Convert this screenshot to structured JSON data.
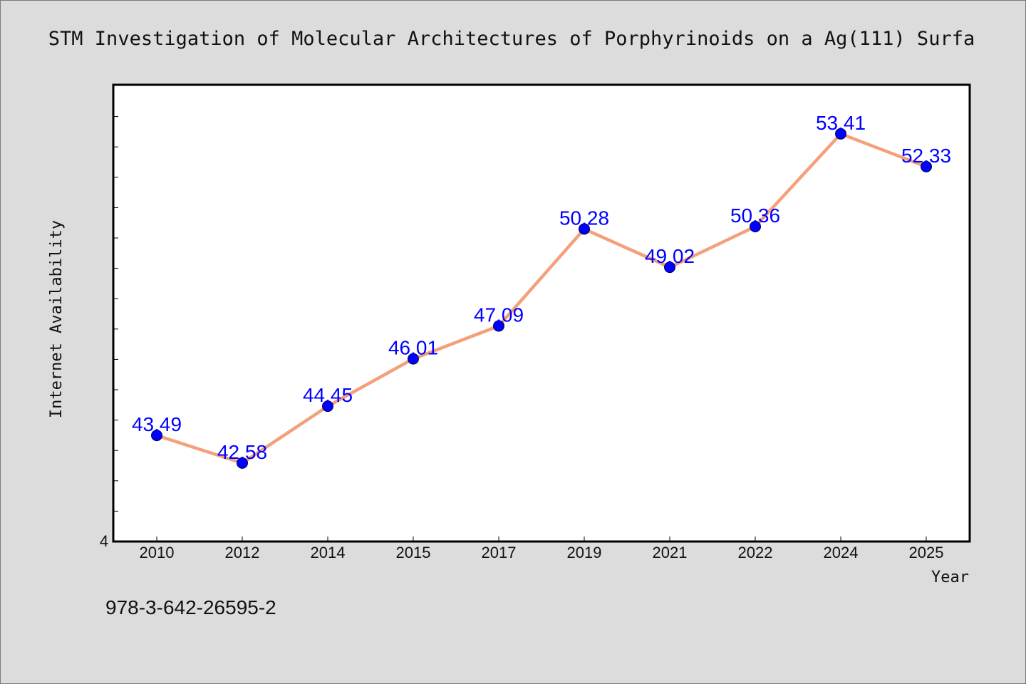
{
  "chart_data": {
    "type": "line",
    "title": "STM Investigation of Molecular Architectures of Porphyrinoids on a Ag(111) Surfa",
    "xlabel": "Year",
    "ylabel": "Internet Availability",
    "categories": [
      "2010",
      "2012",
      "2014",
      "2015",
      "2017",
      "2019",
      "2021",
      "2022",
      "2024",
      "2025"
    ],
    "values": [
      43.49,
      42.58,
      44.45,
      46.01,
      47.09,
      50.28,
      49.02,
      50.36,
      53.41,
      52.33
    ],
    "data_labels": [
      "43.49",
      "42.58",
      "44.45",
      "46.01",
      "47.09",
      "50.28",
      "49.02",
      "50.36",
      "53.41",
      "52.33"
    ],
    "ylim": [
      40,
      55
    ],
    "ytick_label": "4",
    "grid": false,
    "legend": "none",
    "line_color": "#f4a07a",
    "marker_color": "#0000ff",
    "label_color": "#0000ff"
  },
  "footer": {
    "isbn": "978-3-642-26595-2"
  }
}
